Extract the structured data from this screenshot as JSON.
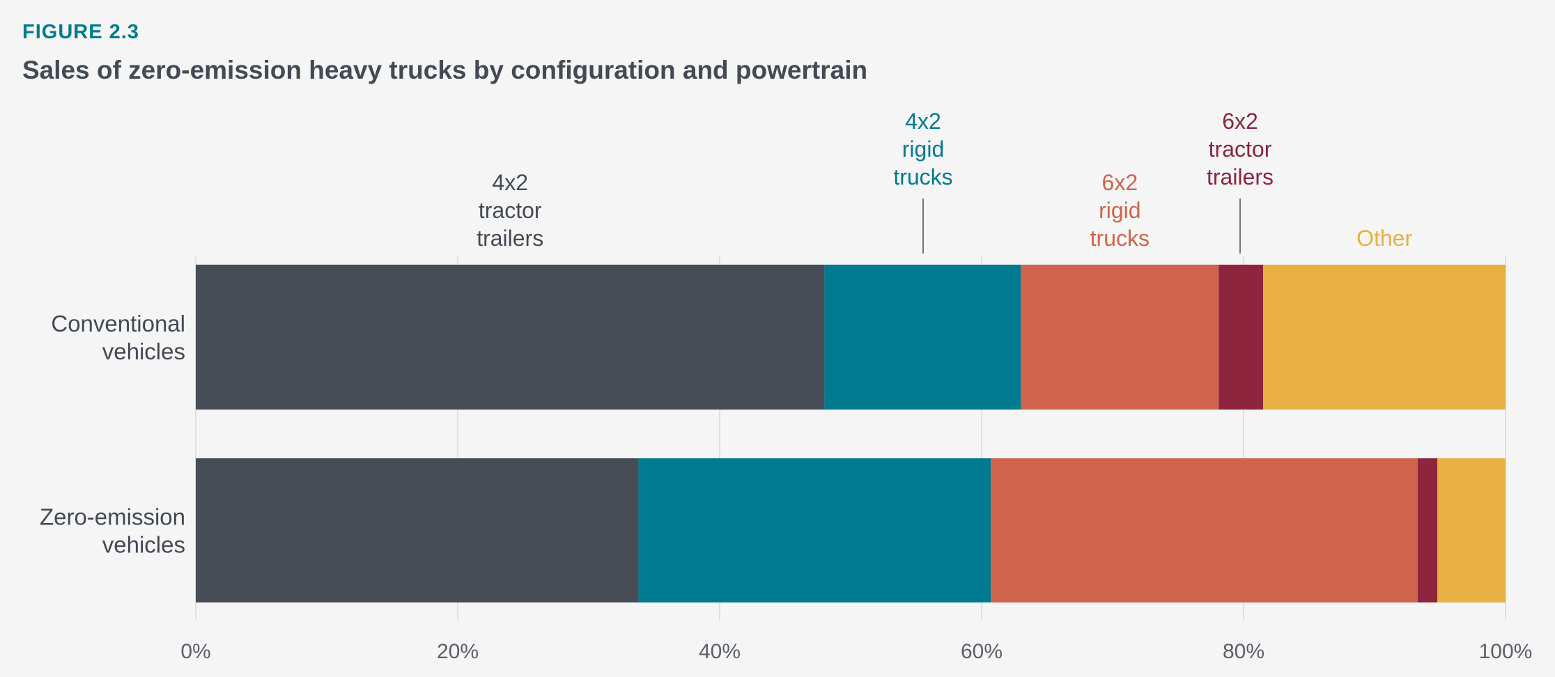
{
  "figure": {
    "label": "FIGURE 2.3",
    "title": "Sales of zero-emission heavy trucks by configuration and powertrain"
  },
  "chart_data": {
    "type": "bar",
    "orientation": "horizontal",
    "stacked": true,
    "categories": [
      [
        "Conventional",
        "vehicles"
      ],
      [
        "Zero-emission",
        "vehicles"
      ]
    ],
    "series": [
      {
        "name": "4x2 tractor trailers",
        "label_lines": [
          "4x2",
          "tractor",
          "trailers"
        ],
        "color": "#454c55",
        "label_color": "#434a53",
        "values": [
          48,
          33.8
        ]
      },
      {
        "name": "4x2 rigid trucks",
        "label_lines": [
          "4x2",
          "rigid",
          "trucks"
        ],
        "color": "#007a8f",
        "label_color": "#007a8f",
        "values": [
          15,
          26.9
        ]
      },
      {
        "name": "6x2 rigid trucks",
        "label_lines": [
          "6x2",
          "rigid",
          "trucks"
        ],
        "color": "#d0634b",
        "label_color": "#d0634b",
        "values": [
          15.1,
          32.6
        ]
      },
      {
        "name": "6x2 tractor trailers",
        "label_lines": [
          "6x2",
          "tractor",
          "trailers"
        ],
        "color": "#8c253d",
        "label_color": "#8c253d",
        "values": [
          3.4,
          1.5
        ]
      },
      {
        "name": "Other",
        "label_lines": [
          "Other"
        ],
        "color": "#e8b042",
        "label_color": "#e8b042",
        "values": [
          18.5,
          5.2
        ]
      }
    ],
    "xlim": [
      0,
      100
    ],
    "x_ticks": [
      "0%",
      "20%",
      "40%",
      "60%",
      "80%",
      "100%"
    ],
    "grid": true,
    "legend": "inline labels above bars"
  }
}
